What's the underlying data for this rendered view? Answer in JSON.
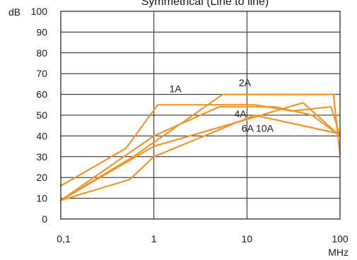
{
  "chart_data": {
    "type": "line",
    "title": "Symmetrical (Line to line)",
    "ylabel": "dB",
    "xlabel": "MHz",
    "x_scale": "log",
    "xlim": [
      0.1,
      100
    ],
    "ylim": [
      0,
      100
    ],
    "y_ticks": [
      0,
      10,
      20,
      30,
      40,
      50,
      60,
      70,
      80,
      90,
      100
    ],
    "y_tick_labels": [
      "0",
      "10",
      "20",
      "30",
      "40",
      "50",
      "60",
      "70",
      "80",
      "90",
      "100"
    ],
    "x_ticks": [
      0.1,
      1,
      10,
      100
    ],
    "x_tick_labels": [
      "0,1",
      "1",
      "10",
      "100"
    ],
    "grid": true,
    "line_color": "#f0952c",
    "series": [
      {
        "name": "1A",
        "x": [
          0.1,
          0.5,
          1.1,
          12,
          30,
          80,
          100
        ],
        "y": [
          16,
          34,
          55,
          55,
          52,
          54,
          40
        ]
      },
      {
        "name": "2A",
        "x": [
          0.1,
          0.6,
          5.5,
          85,
          100
        ],
        "y": [
          9,
          30,
          60,
          60,
          31
        ]
      },
      {
        "name": "4A",
        "x": [
          0.1,
          1,
          5,
          20,
          50,
          100
        ],
        "y": [
          9,
          40,
          54,
          54,
          50,
          40
        ]
      },
      {
        "name": "6A 10A",
        "x": [
          0.1,
          1,
          10,
          40,
          100
        ],
        "y": [
          9,
          35,
          48,
          56,
          40
        ]
      },
      {
        "name": "",
        "x": [
          0.1,
          0.55,
          1,
          12,
          100
        ],
        "y": [
          9,
          19,
          30,
          50,
          41
        ]
      }
    ],
    "series_labels": [
      {
        "text": "1A",
        "x": 1.7,
        "y": 61
      },
      {
        "text": "2A",
        "x": 9.5,
        "y": 64
      },
      {
        "text": "4A",
        "x": 8.5,
        "y": 49
      },
      {
        "text": "6A 10A",
        "x": 13,
        "y": 42
      }
    ]
  }
}
